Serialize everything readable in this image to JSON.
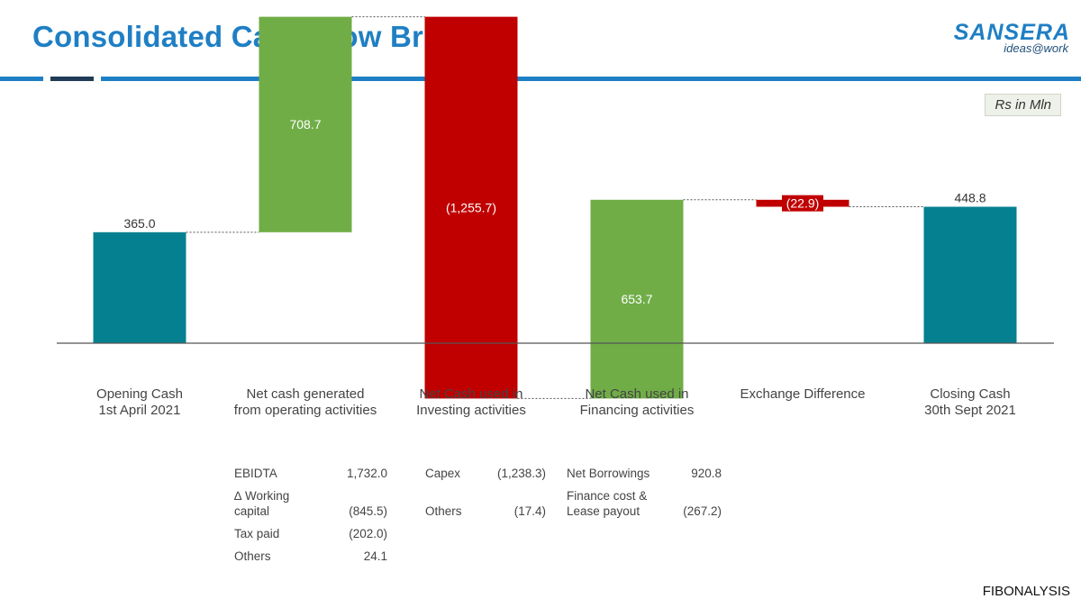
{
  "header": {
    "title": "Consolidated Cash Flow Bridge",
    "logo_text": "SANSERA",
    "logo_tagline": "ideas@work",
    "unit_label": "Rs in Mln",
    "accent_color": "#1f7fc4",
    "accent_dark": "#1f3b57"
  },
  "chart_data": {
    "type": "waterfall",
    "title": "Consolidated Cash Flow Bridge",
    "unit": "Rs in Mln",
    "ylim": [
      -400,
      1250
    ],
    "steps": [
      {
        "label_lines": [
          "Opening Cash",
          "1st April 2021"
        ],
        "value": 365.0,
        "display": "365.0",
        "kind": "total",
        "color": "#058090"
      },
      {
        "label_lines": [
          "Net cash generated",
          "from operating activities"
        ],
        "value": 708.7,
        "display": "708.7",
        "kind": "delta",
        "color": "#70ad47"
      },
      {
        "label_lines": [
          "Net Cash used in",
          "Investing activities"
        ],
        "value": -1255.7,
        "display": "(1,255.7)",
        "kind": "delta",
        "color": "#c00000"
      },
      {
        "label_lines": [
          "Net Cash used in",
          "Financing activities"
        ],
        "value": 653.7,
        "display": "653.7",
        "kind": "delta",
        "color": "#70ad47"
      },
      {
        "label_lines": [
          "Exchange Difference"
        ],
        "value": -22.9,
        "display": "(22.9)",
        "kind": "delta",
        "color": "#c00000"
      },
      {
        "label_lines": [
          "Closing Cash",
          "30th Sept 2021"
        ],
        "value": 448.8,
        "display": "448.8",
        "kind": "total",
        "color": "#058090"
      }
    ]
  },
  "breakdown": {
    "operating": [
      {
        "label": "EBIDTA",
        "value": "1,732.0"
      },
      {
        "label": "∆ Working capital",
        "value": "(845.5)"
      },
      {
        "label": "Tax paid",
        "value": "(202.0)"
      },
      {
        "label": "Others",
        "value": "24.1"
      }
    ],
    "investing": [
      {
        "label": "Capex",
        "value": "(1,238.3)"
      },
      {
        "label": "Others",
        "value": "(17.4)"
      }
    ],
    "financing": [
      {
        "label": "Net Borrowings",
        "value": "920.8"
      },
      {
        "label": "Finance cost & Lease payout",
        "value": "(267.2)"
      }
    ]
  },
  "footer": {
    "source": "FIBONALYSIS"
  }
}
